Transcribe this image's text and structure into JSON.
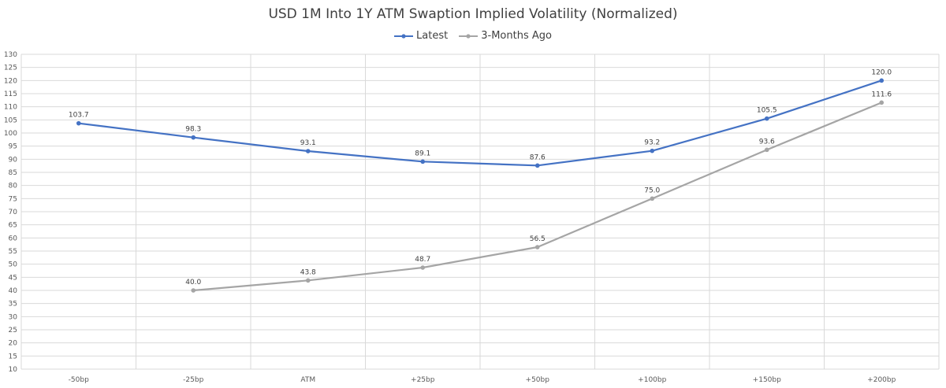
{
  "chart_data": {
    "type": "line",
    "title": "USD 1M Into 1Y ATM Swaption Implied Volatility (Normalized)",
    "categories": [
      "-50bp",
      "-25bp",
      "ATM",
      "+25bp",
      "+50bp",
      "+100bp",
      "+150bp",
      "+200bp"
    ],
    "series": [
      {
        "name": "Latest",
        "color": "#4472c4",
        "values": [
          103.7,
          98.3,
          93.1,
          89.1,
          87.6,
          93.2,
          105.5,
          120.0
        ]
      },
      {
        "name": "3-Months Ago",
        "color": "#a5a5a5",
        "values": [
          null,
          40.0,
          43.8,
          48.7,
          56.5,
          75.0,
          93.6,
          111.6
        ]
      }
    ],
    "ylim": [
      10,
      130
    ],
    "ytick_step": 5,
    "grid": true,
    "legend_position": "top-center"
  }
}
